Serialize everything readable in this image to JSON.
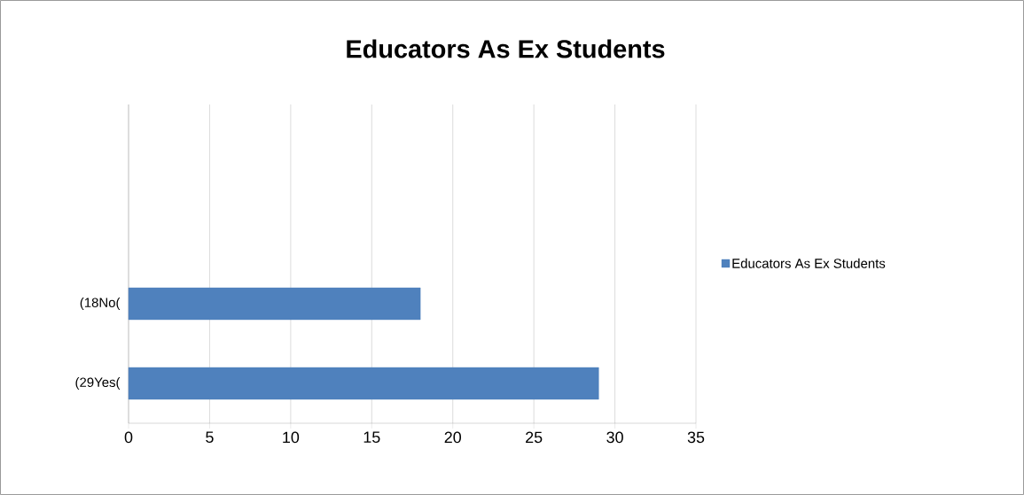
{
  "chart_data": {
    "type": "bar",
    "orientation": "horizontal",
    "title": "Educators As Ex Students",
    "categories": [
      null,
      null,
      "(18No(",
      "(29Yes("
    ],
    "series": [
      {
        "name": "Educators As Ex Students",
        "color": "#4f81bd",
        "values": [
          null,
          null,
          18,
          29
        ]
      }
    ],
    "xlim": [
      0,
      35
    ],
    "xticks": [
      0,
      5,
      10,
      15,
      20,
      25,
      30,
      35
    ],
    "grid": "x",
    "legend": "right"
  }
}
